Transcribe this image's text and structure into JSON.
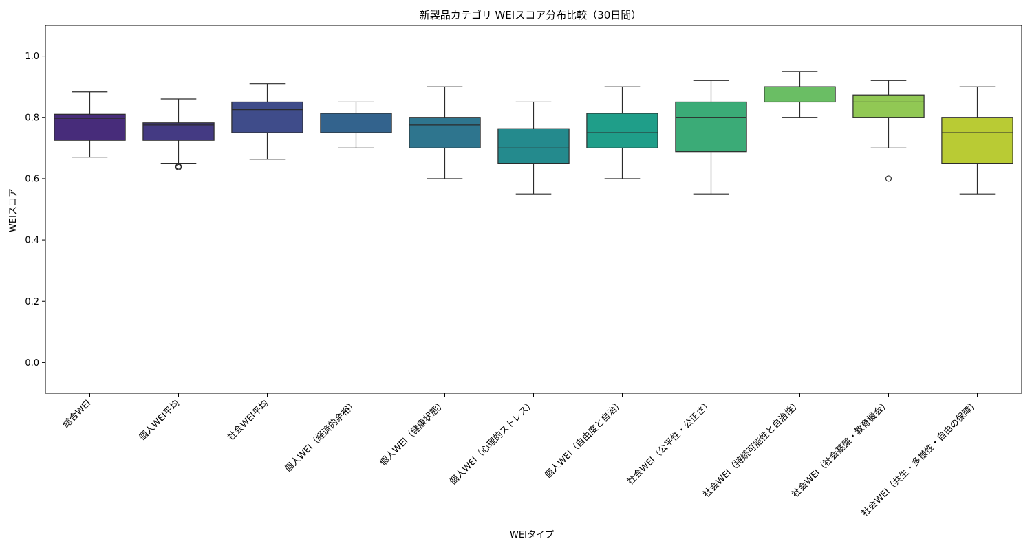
{
  "chart_data": {
    "type": "box",
    "title": "新製品カテゴリ WEIスコア分布比較（30日間）",
    "xlabel": "WEIタイプ",
    "ylabel": "WEIスコア",
    "ylim": [
      -0.1,
      1.1
    ],
    "yticks": [
      "0.0",
      "0.2",
      "0.4",
      "0.6",
      "0.8",
      "1.0"
    ],
    "grid": false,
    "categories": [
      "総合WEI",
      "個人WEI平均",
      "社会WEI平均",
      "個人WEI（経済的余裕）",
      "個人WEI（健康状態）",
      "個人WEI（心理的ストレス）",
      "個人WEI（自由度と自治）",
      "社会WEI（公平性・公正さ）",
      "社会WEI（持続可能性と自治性）",
      "社会WEI（社会基盤・教育機会）",
      "社会WEI（共生・多様性・自由の保障）"
    ],
    "boxes": [
      {
        "whisker_low": 0.67,
        "q1": 0.725,
        "median": 0.797,
        "q3": 0.81,
        "whisker_high": 0.883,
        "outliers": [],
        "color": "#472c7a"
      },
      {
        "whisker_low": 0.65,
        "q1": 0.725,
        "median": 0.775,
        "q3": 0.782,
        "whisker_high": 0.86,
        "outliers": [
          0.637,
          0.64
        ],
        "color": "#443a83"
      },
      {
        "whisker_low": 0.663,
        "q1": 0.75,
        "median": 0.825,
        "q3": 0.85,
        "whisker_high": 0.91,
        "outliers": [],
        "color": "#3f4c8a"
      },
      {
        "whisker_low": 0.7,
        "q1": 0.75,
        "median": 0.75,
        "q3": 0.813,
        "whisker_high": 0.85,
        "outliers": [],
        "color": "#33638d"
      },
      {
        "whisker_low": 0.6,
        "q1": 0.7,
        "median": 0.775,
        "q3": 0.8,
        "whisker_high": 0.9,
        "outliers": [],
        "color": "#2e758e"
      },
      {
        "whisker_low": 0.55,
        "q1": 0.65,
        "median": 0.7,
        "q3": 0.763,
        "whisker_high": 0.85,
        "outliers": [],
        "color": "#248a8d"
      },
      {
        "whisker_low": 0.6,
        "q1": 0.7,
        "median": 0.75,
        "q3": 0.813,
        "whisker_high": 0.9,
        "outliers": [],
        "color": "#1f9e89"
      },
      {
        "whisker_low": 0.55,
        "q1": 0.688,
        "median": 0.8,
        "q3": 0.85,
        "whisker_high": 0.92,
        "outliers": [],
        "color": "#3bab77"
      },
      {
        "whisker_low": 0.8,
        "q1": 0.85,
        "median": 0.9,
        "q3": 0.9,
        "whisker_high": 0.95,
        "outliers": [],
        "color": "#6abe64"
      },
      {
        "whisker_low": 0.7,
        "q1": 0.8,
        "median": 0.85,
        "q3": 0.873,
        "whisker_high": 0.92,
        "outliers": [
          0.6
        ],
        "color": "#91c854"
      },
      {
        "whisker_low": 0.55,
        "q1": 0.65,
        "median": 0.75,
        "q3": 0.8,
        "whisker_high": 0.9,
        "outliers": [],
        "color": "#b9cb34"
      }
    ]
  }
}
